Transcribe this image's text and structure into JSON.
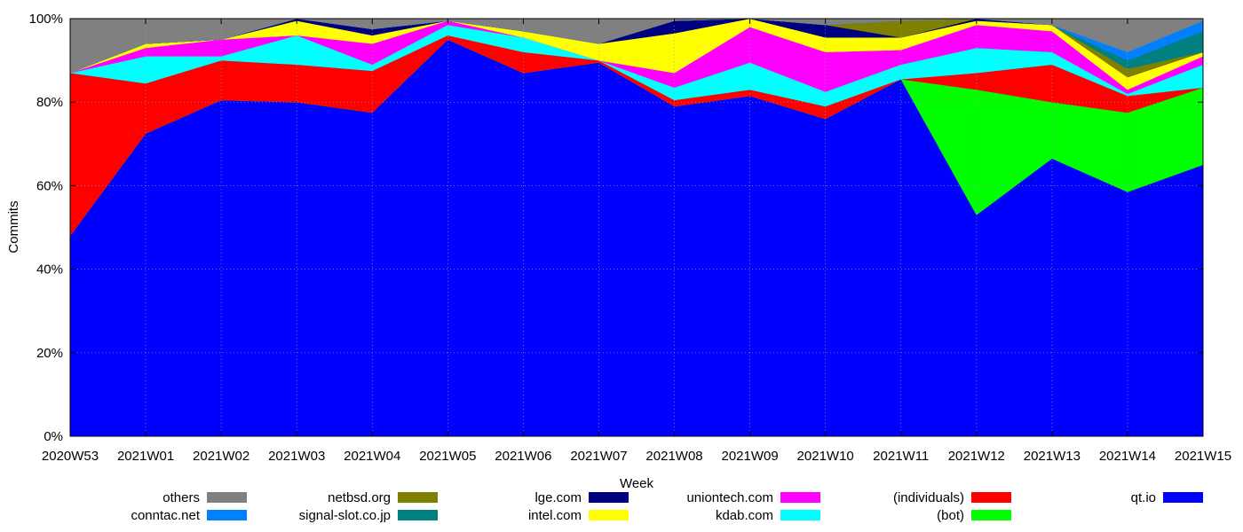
{
  "chart_data": {
    "type": "area",
    "stacked": true,
    "normalized_percent": true,
    "xlabel": "Week",
    "ylabel": "Commits",
    "ylim": [
      0,
      100
    ],
    "yticks": [
      "0%",
      "20%",
      "40%",
      "60%",
      "80%",
      "100%"
    ],
    "grid": true,
    "legend_position": "bottom",
    "categories": [
      "2020W53",
      "2021W01",
      "2021W02",
      "2021W03",
      "2021W04",
      "2021W05",
      "2021W06",
      "2021W07",
      "2021W08",
      "2021W09",
      "2021W10",
      "2021W11",
      "2021W12",
      "2021W13",
      "2021W14",
      "2021W15"
    ],
    "series": [
      {
        "name": "qt.io",
        "color": "#0000ff",
        "values": [
          48,
          72.5,
          80.5,
          80,
          77.5,
          95,
          87,
          89.5,
          79,
          81.5,
          76,
          85.5,
          53,
          66.5,
          58.5,
          65
        ]
      },
      {
        "name": "(bot)",
        "color": "#00ff00",
        "values": [
          0,
          0,
          0,
          0,
          0,
          0,
          0,
          0,
          0,
          0,
          0,
          0,
          30,
          13.5,
          19,
          18.5
        ]
      },
      {
        "name": "(individuals)",
        "color": "#ff0000",
        "values": [
          39,
          12,
          9.5,
          9,
          10,
          1,
          5,
          0.5,
          1.5,
          1.5,
          3,
          0,
          4,
          9,
          4,
          0
        ]
      },
      {
        "name": "kdab.com",
        "color": "#00ffff",
        "values": [
          0,
          6.5,
          1,
          7,
          1.5,
          2.5,
          3.5,
          0,
          3,
          6.5,
          3.5,
          3.5,
          6,
          3,
          0.5,
          5.5
        ]
      },
      {
        "name": "uniontech.com",
        "color": "#ff00ff",
        "values": [
          0,
          2,
          4,
          0,
          5,
          1,
          0,
          0,
          3.5,
          8.5,
          9.5,
          3.5,
          5.5,
          5,
          1,
          2
        ]
      },
      {
        "name": "intel.com",
        "color": "#ffff00",
        "values": [
          0,
          1,
          0,
          3.5,
          2,
          0,
          1.5,
          4,
          9.5,
          2.5,
          3.5,
          3,
          1,
          1.5,
          3,
          1
        ]
      },
      {
        "name": "lge.com",
        "color": "#000080",
        "values": [
          0,
          0,
          0,
          0.5,
          1.5,
          0,
          0,
          0,
          3,
          0,
          3,
          0,
          0.5,
          0,
          0,
          0
        ]
      },
      {
        "name": "netbsd.org",
        "color": "#808000",
        "values": [
          0,
          0,
          0,
          0,
          0,
          0,
          0,
          0,
          0,
          0,
          0,
          4,
          0.5,
          0,
          2,
          0
        ]
      },
      {
        "name": "signal-slot.co.jp",
        "color": "#008080",
        "values": [
          0,
          0,
          0,
          0,
          0,
          0,
          0,
          0,
          0,
          0,
          0,
          0,
          0,
          0,
          2,
          5
        ]
      },
      {
        "name": "conntac.net",
        "color": "#0080ff",
        "values": [
          0,
          0,
          0,
          0,
          0,
          0,
          0,
          0,
          0,
          0,
          0,
          0,
          0,
          0,
          2,
          2.5
        ]
      },
      {
        "name": "others",
        "color": "#808080",
        "values": [
          13,
          6,
          5,
          0,
          3,
          0.5,
          3,
          6,
          0.5,
          0,
          1.5,
          0.5,
          0,
          1.5,
          8,
          0.5
        ]
      }
    ],
    "legend_order": [
      "others",
      "netbsd.org",
      "lge.com",
      "uniontech.com",
      "(individuals)",
      "qt.io",
      "conntac.net",
      "signal-slot.co.jp",
      "intel.com",
      "kdab.com",
      "(bot)"
    ]
  }
}
